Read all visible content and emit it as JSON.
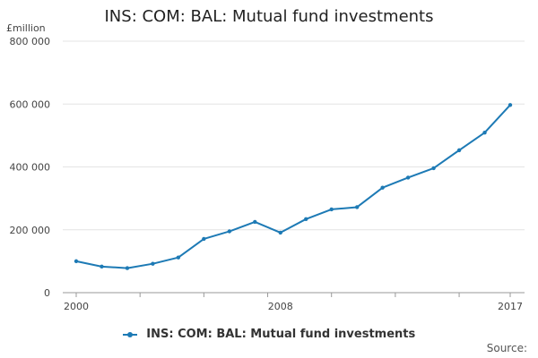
{
  "chart_data": {
    "type": "line",
    "title": "INS: COM: BAL: Mutual fund investments",
    "ylabel": "£million",
    "xlabel": "",
    "x": [
      2000,
      2001,
      2002,
      2003,
      2004,
      2005,
      2006,
      2007,
      2008,
      2009,
      2010,
      2011,
      2012,
      2013,
      2014,
      2015,
      2016,
      2017
    ],
    "x_tick_labels": [
      "2000",
      "2008",
      "2017"
    ],
    "y_tick_labels": [
      "0",
      "200 000",
      "400 000",
      "600 000",
      "800 000"
    ],
    "ylim": [
      0,
      800000
    ],
    "xlim": [
      2000,
      2017
    ],
    "grid": true,
    "legend_position": "bottom",
    "series": [
      {
        "name": "INS: COM: BAL: Mutual fund investments",
        "color": "#1d7ab5",
        "values": [
          100000,
          83000,
          78000,
          92000,
          112000,
          171000,
          195000,
          225000,
          191000,
          234000,
          265000,
          272000,
          334000,
          366000,
          396000,
          453000,
          509000,
          597000
        ]
      }
    ]
  },
  "source_text": "Source:"
}
